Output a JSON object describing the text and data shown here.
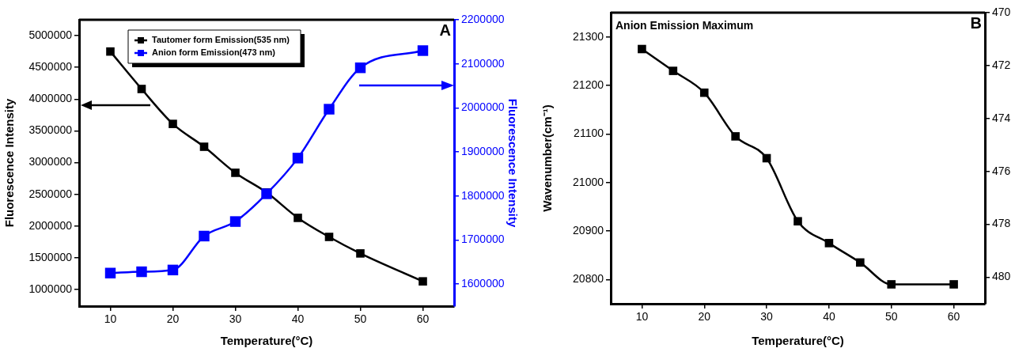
{
  "chart_data": [
    {
      "type": "line",
      "xlabel": "Temperature(°C)",
      "ylabel": "Fluorescence Intensity",
      "y2label": "Fluorescence Intensity",
      "annotations": [
        "A"
      ],
      "x": [
        10,
        15,
        20,
        25,
        30,
        35,
        40,
        45,
        50,
        60
      ],
      "xlim": [
        5,
        65
      ],
      "xticks": [
        10,
        20,
        30,
        40,
        50,
        60
      ],
      "ylim": [
        740000,
        5250000
      ],
      "yticks": [
        1000000,
        1500000,
        2000000,
        2500000,
        3000000,
        3500000,
        4000000,
        4500000,
        5000000
      ],
      "y2lim": [
        1550000,
        2200000
      ],
      "y2ticks": [
        1600000,
        1700000,
        1800000,
        1900000,
        2000000,
        2100000,
        2200000
      ],
      "series": [
        {
          "name": "Tautomer form Emission(535 nm)",
          "color": "#000000",
          "values": [
            4750000,
            4160000,
            3610000,
            3250000,
            2840000,
            2530000,
            2130000,
            1830000,
            1570000,
            1130000
          ]
        },
        {
          "name": "Anion form Emission(473 nm)",
          "color": "#0000ff",
          "axis": "y2",
          "values": [
            1625000,
            1628000,
            1632000,
            1709000,
            1742000,
            1805000,
            1886000,
            1997000,
            2091000,
            2130000
          ]
        }
      ],
      "legend": "top",
      "marker": "square",
      "grid": false
    },
    {
      "type": "line",
      "title": "Anion Emission Maximum",
      "xlabel": "Temperature(°C)",
      "ylabel": "Wavenumber(cm⁻¹)",
      "annotations": [
        "B"
      ],
      "x": [
        10,
        15,
        20,
        25,
        30,
        35,
        40,
        45,
        50,
        60
      ],
      "xlim": [
        5,
        65
      ],
      "xticks": [
        10,
        20,
        30,
        40,
        50,
        60
      ],
      "ylim": [
        20750,
        21350
      ],
      "yticks": [
        20800,
        20900,
        21000,
        21100,
        21200,
        21300
      ],
      "y2lim": [
        481,
        470
      ],
      "y2ticks": [
        470,
        472,
        474,
        476,
        478,
        480
      ],
      "series": [
        {
          "color": "#000000",
          "values": [
            21275,
            21230,
            21185,
            21095,
            21050,
            20920,
            20875,
            20835,
            20790,
            20790
          ]
        }
      ],
      "marker": "square",
      "grid": false
    }
  ]
}
